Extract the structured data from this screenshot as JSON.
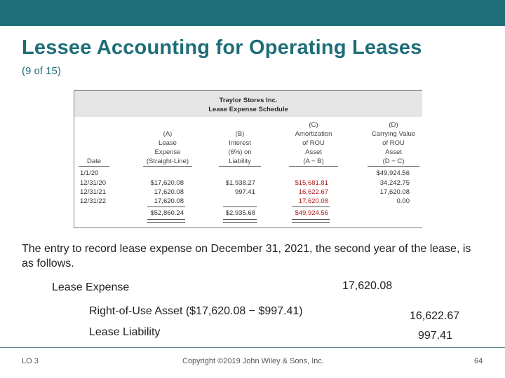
{
  "header": {
    "title": "Lessee Accounting for Operating Leases",
    "subtitle": "(9 of 15)"
  },
  "schedule": {
    "company": "Traylor Stores Inc.",
    "name": "Lease Expense Schedule",
    "columns": [
      {
        "id": "date",
        "lines": [
          "",
          "",
          "",
          "",
          "Date"
        ]
      },
      {
        "id": "A",
        "lines": [
          "",
          "(A)",
          "Lease",
          "Expense",
          "(Straight-Line)"
        ]
      },
      {
        "id": "B",
        "lines": [
          "",
          "(B)",
          "Interest",
          "(6%) on",
          "Liability"
        ]
      },
      {
        "id": "C",
        "lines": [
          "(C)",
          "Amortization",
          "of ROU",
          "Asset",
          "(A − B)"
        ]
      },
      {
        "id": "D",
        "lines": [
          "(D)",
          "Carrying Value",
          "of ROU",
          "Asset",
          "(D − C)"
        ]
      }
    ],
    "rows": [
      {
        "date": "1/1/20",
        "A": "",
        "B": "",
        "C": "",
        "D": "$49,924.56"
      },
      {
        "date": "12/31/20",
        "A": "$17,620.08",
        "B": "$1,938.27",
        "C": "$15,681.81",
        "D": "34,242.75"
      },
      {
        "date": "12/31/21",
        "A": "17,620.08",
        "B": "997.41",
        "C": "16,622.67",
        "D": "17,620.08"
      },
      {
        "date": "12/31/22",
        "A": "17,620.08",
        "B": "",
        "C": "17,620.08",
        "D": "0.00"
      }
    ],
    "totals": {
      "A": "$52,860.24",
      "B": "$2,935.68",
      "C": "$49,924.56"
    }
  },
  "body": {
    "intro": "The entry to record lease expense on December 31, 2021, the second year of the lease, is as follows."
  },
  "entry": {
    "debit_account": "Lease Expense",
    "debit_amount": "17,620.08",
    "credit1_account": "Right-of-Use Asset ($17,620.08 − $997.41)",
    "credit1_amount": "16,622.67",
    "credit2_account": "Lease Liability",
    "credit2_amount": "997.41"
  },
  "footer": {
    "lo": "LO 3",
    "copyright": "Copyright ©2019 John Wiley & Sons, Inc.",
    "page": "64"
  }
}
